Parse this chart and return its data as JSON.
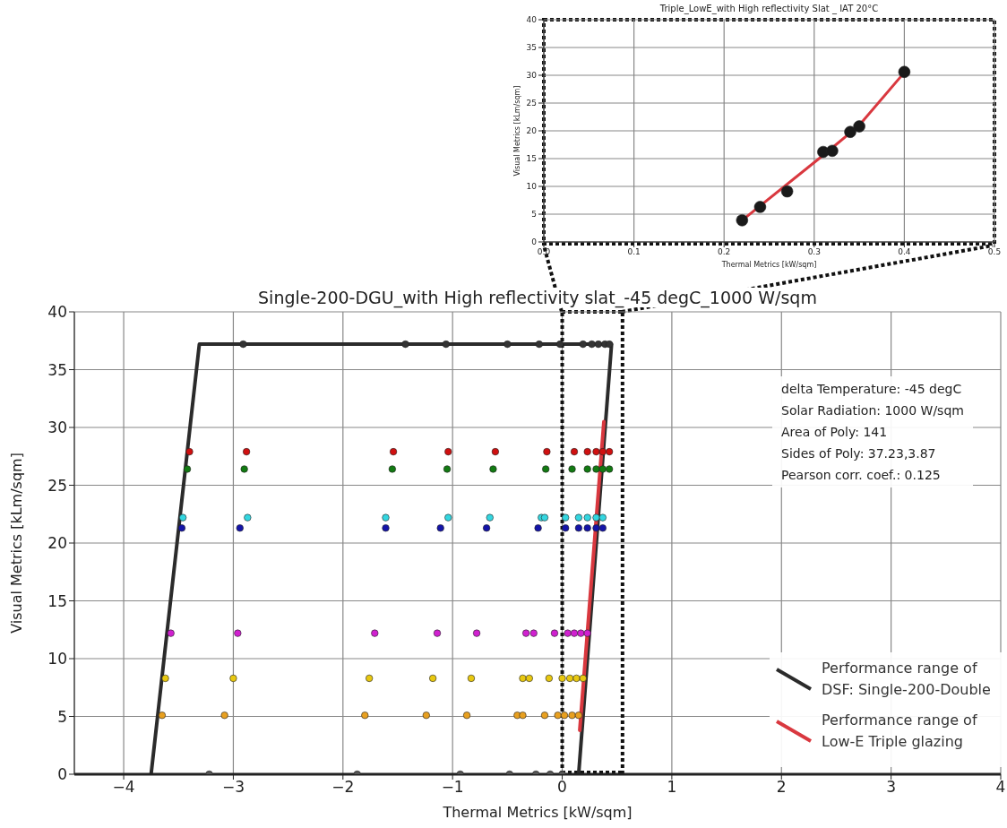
{
  "chart_data": [
    {
      "type": "scatter",
      "title": "Triple_LowE_with High reflectivity Slat _ IAT 20°C",
      "xlabel": "Thermal Metrics [kW/sqm]",
      "ylabel": "Visual Metrics [kLm/sqm]",
      "xlim": [
        0,
        0.5
      ],
      "xticks": [
        {
          "value": 0,
          "label": "0.0"
        },
        0.1,
        0.2,
        0.3,
        0.4,
        0.5
      ],
      "ylim": [
        0,
        40
      ],
      "yticks": [
        0,
        5,
        10,
        15,
        20,
        25,
        30,
        35,
        40
      ],
      "grid": true,
      "marker": "circle",
      "series": [
        {
          "color": "#1a1a1a",
          "x": [
            0.22,
            0.24,
            0.27,
            0.31,
            0.32,
            0.34,
            0.35,
            0.4
          ],
          "values": [
            3.9,
            6.3,
            9.1,
            16.2,
            16.4,
            19.8,
            20.8,
            30.6
          ]
        },
        {
          "type": "line",
          "marker": "none",
          "color": "#d9383f",
          "x": [
            0.22,
            0.31,
            0.35,
            0.4
          ],
          "values": [
            3.9,
            15.6,
            21,
            30.5
          ]
        }
      ]
    },
    {
      "type": "scatter",
      "title": "Single-200-DGU_with High reflectivity slat_-45 degC_1000 W/sqm",
      "xlabel": "Thermal Metrics [kW/sqm]",
      "ylabel": "Visual Metrics [kLm/sqm]",
      "ref_lines": [
        {
          "axis": "x",
          "value": 0,
          "color": "#111111",
          "line_style": "dotted"
        },
        {
          "axis": "x",
          "value": 0.55,
          "color": "#111111",
          "line_style": "dotted"
        }
      ],
      "xlim": [
        -4.45,
        4
      ],
      "xticks": [
        {
          "value": -4,
          "label": "−4"
        },
        {
          "value": -3,
          "label": "−3"
        },
        {
          "value": -2,
          "label": "−2"
        },
        {
          "value": -1,
          "label": "−1"
        },
        0,
        1,
        2,
        3,
        4
      ],
      "ylim": [
        0,
        40
      ],
      "yticks": [
        0,
        5,
        10,
        15,
        20,
        25,
        30,
        35,
        40
      ],
      "grid": true,
      "marker": "circle",
      "legend": "bottom right",
      "annotations": [
        "delta Temperature: -45 degC",
        "Solar Radiation: 1000 W/sqm",
        "Area of Poly: 141",
        "Sides of Poly: 37.23,3.87",
        "Pearson corr. coef.: 0.125"
      ],
      "series": [
        {
          "color": "#333333",
          "x": [
            -2.91,
            -1.43,
            -1.06,
            -0.5,
            -0.21,
            -0.02,
            0.19,
            0.27,
            0.33,
            0.39,
            0.43
          ],
          "values": [
            37.2,
            37.2,
            37.2,
            37.2,
            37.2,
            37.2,
            37.2,
            37.2,
            37.2,
            37.2,
            37.2
          ]
        },
        {
          "color": "#d01010",
          "x": [
            -3.4,
            -2.88,
            -1.54,
            -1.04,
            -0.61,
            -0.14,
            0.11,
            0.23,
            0.31,
            0.37,
            0.43
          ],
          "values": [
            27.9,
            27.9,
            27.9,
            27.9,
            27.9,
            27.9,
            27.9,
            27.9,
            27.9,
            27.9,
            27.9
          ]
        },
        {
          "color": "#127a12",
          "x": [
            -3.42,
            -2.9,
            -1.55,
            -1.05,
            -0.63,
            -0.15,
            0.09,
            0.23,
            0.31,
            0.37,
            0.43
          ],
          "values": [
            26.4,
            26.4,
            26.4,
            26.4,
            26.4,
            26.4,
            26.4,
            26.4,
            26.4,
            26.4,
            26.4
          ]
        },
        {
          "color": "#33d6e0",
          "x": [
            -3.46,
            -2.87,
            -1.61,
            -1.04,
            -0.66,
            -0.19,
            -0.16,
            0.03,
            0.15,
            0.23,
            0.31,
            0.37
          ],
          "values": [
            22.2,
            22.2,
            22.2,
            22.2,
            22.2,
            22.2,
            22.2,
            22.2,
            22.2,
            22.2,
            22.2,
            22.2
          ]
        },
        {
          "color": "#1414a8",
          "x": [
            -3.47,
            -2.94,
            -1.61,
            -1.11,
            -0.69,
            -0.22,
            0.03,
            0.15,
            0.23,
            0.31,
            0.37
          ],
          "values": [
            21.3,
            21.3,
            21.3,
            21.3,
            21.3,
            21.3,
            21.3,
            21.3,
            21.3,
            21.3,
            21.3
          ]
        },
        {
          "color": "#d020d0",
          "x": [
            -3.57,
            -2.96,
            -1.71,
            -1.14,
            -0.78,
            -0.33,
            -0.26,
            -0.07,
            0.05,
            0.11,
            0.17,
            0.23
          ],
          "values": [
            12.2,
            12.2,
            12.2,
            12.2,
            12.2,
            12.2,
            12.2,
            12.2,
            12.2,
            12.2,
            12.2,
            12.2
          ]
        },
        {
          "color": "#e8c810",
          "x": [
            -3.62,
            -3.0,
            -1.76,
            -1.18,
            -0.83,
            -0.36,
            -0.3,
            -0.12,
            0.0,
            0.07,
            0.13,
            0.19
          ],
          "values": [
            8.3,
            8.3,
            8.3,
            8.3,
            8.3,
            8.3,
            8.3,
            8.3,
            8.3,
            8.3,
            8.3,
            8.3
          ]
        },
        {
          "color": "#e8a020",
          "x": [
            -3.65,
            -3.08,
            -1.8,
            -1.24,
            -0.87,
            -0.41,
            -0.36,
            -0.16,
            -0.04,
            0.02,
            0.09,
            0.15
          ],
          "values": [
            5.1,
            5.1,
            5.1,
            5.1,
            5.1,
            5.1,
            5.1,
            5.1,
            5.1,
            5.1,
            5.1,
            5.1
          ]
        },
        {
          "color": "#555555",
          "x": [
            -3.22,
            -1.87,
            -0.93,
            -0.48,
            -0.24,
            -0.11,
            0.0
          ],
          "values": [
            0,
            0,
            0,
            0,
            0,
            0,
            0
          ]
        },
        {
          "type": "line",
          "marker": "none",
          "name": "Performance range of DSF: Single-200-Double",
          "color": "#2b2b2b",
          "x": [
            -3.75,
            -3.31,
            0.45,
            0.15
          ],
          "values": [
            0,
            37.2,
            37.2,
            0
          ]
        },
        {
          "type": "line",
          "marker": "none",
          "name": "Performance range of Low-E Triple glazing",
          "color": "#d9383f",
          "x": [
            0.16,
            0.38
          ],
          "values": [
            3.8,
            30.5
          ]
        }
      ]
    }
  ]
}
